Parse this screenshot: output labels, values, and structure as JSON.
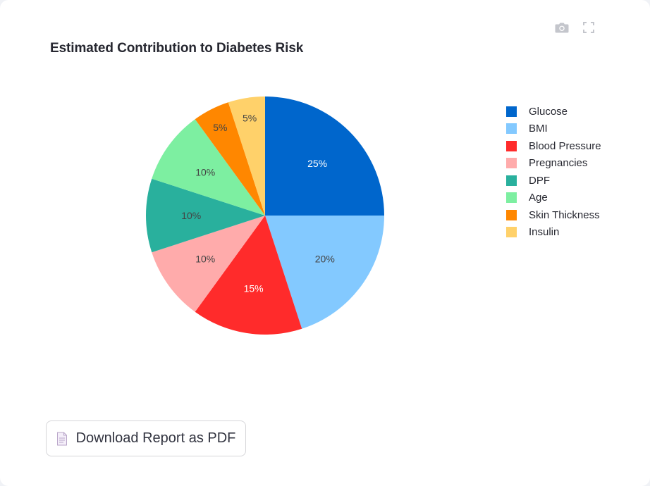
{
  "chart_data": {
    "type": "pie",
    "title": "Estimated Contribution to Diabetes Risk",
    "categories": [
      "Glucose",
      "BMI",
      "Blood Pressure",
      "Pregnancies",
      "DPF",
      "Age",
      "Skin Thickness",
      "Insulin"
    ],
    "values": [
      25,
      20,
      15,
      10,
      10,
      10,
      5,
      5
    ],
    "labels": [
      "25%",
      "20%",
      "15%",
      "10%",
      "10%",
      "10%",
      "5%",
      "5%"
    ],
    "colors": [
      "#0066cc",
      "#83c9ff",
      "#ff2b2b",
      "#ffabab",
      "#29b09d",
      "#7defa1",
      "#ff8700",
      "#ffd16a"
    ],
    "label_colors": [
      "#ffffff",
      "#444444",
      "#ffffff",
      "#444444",
      "#444444",
      "#444444",
      "#444444",
      "#444444"
    ],
    "legend_position": "right",
    "direction": "clockwise",
    "start_angle": "12 o'clock"
  },
  "toolbar": {
    "icons": [
      "camera-icon",
      "fullscreen-icon"
    ]
  },
  "download": {
    "label": "Download Report as PDF",
    "icon": "document-icon"
  }
}
